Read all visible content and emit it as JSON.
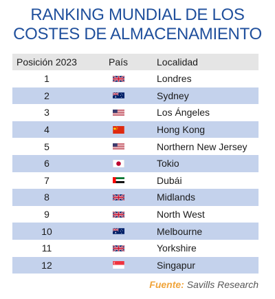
{
  "title": {
    "line1": "RANKING MUNDIAL DE LOS",
    "line2": "COSTES DE ALMACENAMIENTO"
  },
  "table": {
    "headers": [
      "Posición 2023",
      "País",
      "Localidad"
    ],
    "rows": [
      {
        "position": "1",
        "flag": "uk-flag-icon",
        "location": "Londres"
      },
      {
        "position": "2",
        "flag": "australia-flag-icon",
        "location": "Sydney"
      },
      {
        "position": "3",
        "flag": "usa-flag-icon",
        "location": "Los Ángeles"
      },
      {
        "position": "4",
        "flag": "china-flag-icon",
        "location": "Hong Kong"
      },
      {
        "position": "5",
        "flag": "usa-flag-icon",
        "location": "Northern New Jersey"
      },
      {
        "position": "6",
        "flag": "japan-flag-icon",
        "location": "Tokio"
      },
      {
        "position": "7",
        "flag": "uae-flag-icon",
        "location": "Dubái"
      },
      {
        "position": "8",
        "flag": "uk-flag-icon",
        "location": "Midlands"
      },
      {
        "position": "9",
        "flag": "uk-flag-icon",
        "location": "North West"
      },
      {
        "position": "10",
        "flag": "australia-flag-icon",
        "location": "Melbourne"
      },
      {
        "position": "11",
        "flag": "uk-flag-icon",
        "location": "Yorkshire"
      },
      {
        "position": "12",
        "flag": "singapore-flag-icon",
        "location": "Singapur"
      }
    ]
  },
  "source": {
    "label": "Fuente:",
    "text": "Savills Research"
  },
  "colors": {
    "title": "#1f4f9c",
    "row_alt": "#c4d2ec",
    "header_bg": "#e5e5e5",
    "source_label": "#f0a43a"
  }
}
